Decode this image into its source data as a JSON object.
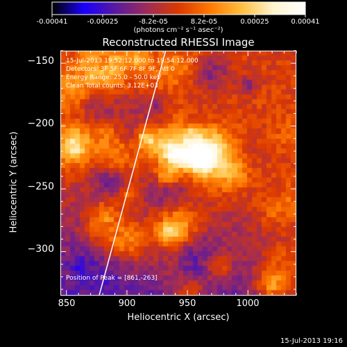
{
  "colorbar": {
    "labels": [
      "-0.00041",
      "-0.00025",
      "-8.2e-05",
      "8.2e-05",
      "0.00025",
      "0.00041"
    ],
    "unit": "(photons cm⁻² s⁻¹ asec⁻²)",
    "min": -0.00041,
    "max": 0.00041,
    "colormap": [
      "#000000",
      "#1a00ff",
      "#5a1aa0",
      "#9e2c5a",
      "#dc3a00",
      "#ff7a00",
      "#ffc040",
      "#fff5d0",
      "#ffffff"
    ]
  },
  "chart_data": {
    "type": "heatmap",
    "title": "Reconstructed RHESSI Image",
    "xlabel": "Heliocentric X (arcsec)",
    "ylabel": "Heliocentric Y (arcsec)",
    "xlim": [
      845,
      1040
    ],
    "ylim": [
      -335,
      -140
    ],
    "x_ticks": [
      850,
      900,
      950,
      1000
    ],
    "y_ticks": [
      -150,
      -200,
      -250,
      -300
    ],
    "x_tick_labels": [
      "850",
      "900",
      "950",
      "1000"
    ],
    "y_tick_labels": [
      "−150",
      "−200",
      "−250",
      "−300"
    ],
    "limb_line": {
      "x": [
        877,
        932
      ],
      "y": [
        -335,
        -140
      ]
    },
    "annotations": [
      "15-Jul-2013 19:52:12.000 to 19:54:12.000",
      "Detectors: 3F 5F 6F 7F 8F 9F, Att 0",
      "Energy Range: 25.0 - 50.0 keV",
      "Clean    Total counts: 3.12E+03"
    ],
    "peak_label": "Position of Peak = [861,-263]",
    "grid": false
  },
  "footer": {
    "timestamp": "15-Jul-2013 19:16"
  }
}
